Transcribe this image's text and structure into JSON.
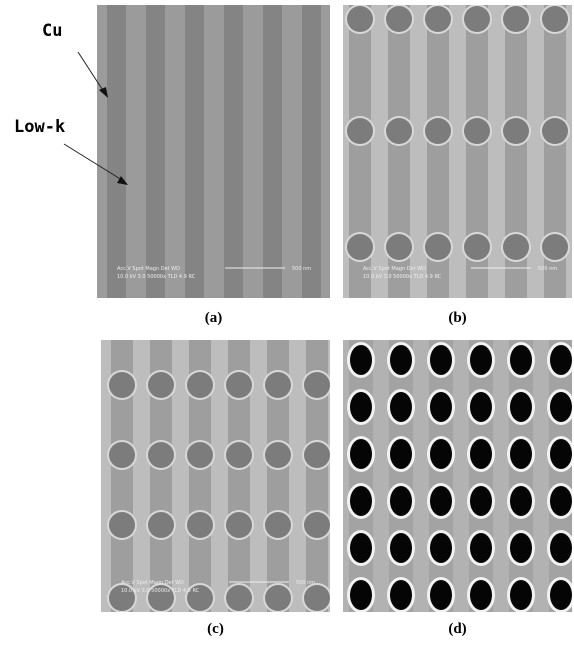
{
  "annotations": {
    "cu": "Cu",
    "low_k": "Low-k"
  },
  "panels": [
    {
      "label": "(a)",
      "info_line1": "Acc.V   Spot Magn    Det  WD",
      "info_line2": "10.0 kV 3.0  50000x   TLD  4.9   RC",
      "scale_bar": "500 nm"
    },
    {
      "label": "(b)",
      "info_line1": "Acc.V   Spot Magn    Det  WD",
      "info_line2": "10.0 kV 3.0  50000x   TLD  4.9   RC",
      "scale_bar": "500 nm"
    },
    {
      "label": "(c)",
      "info_line1": "Acc.V   Spot Magn    Det  WD",
      "info_line2": "10.0 kV 3.0  50000x   TLD  4.9   RC",
      "scale_bar": "500 nm"
    },
    {
      "label": "(d)"
    }
  ]
}
